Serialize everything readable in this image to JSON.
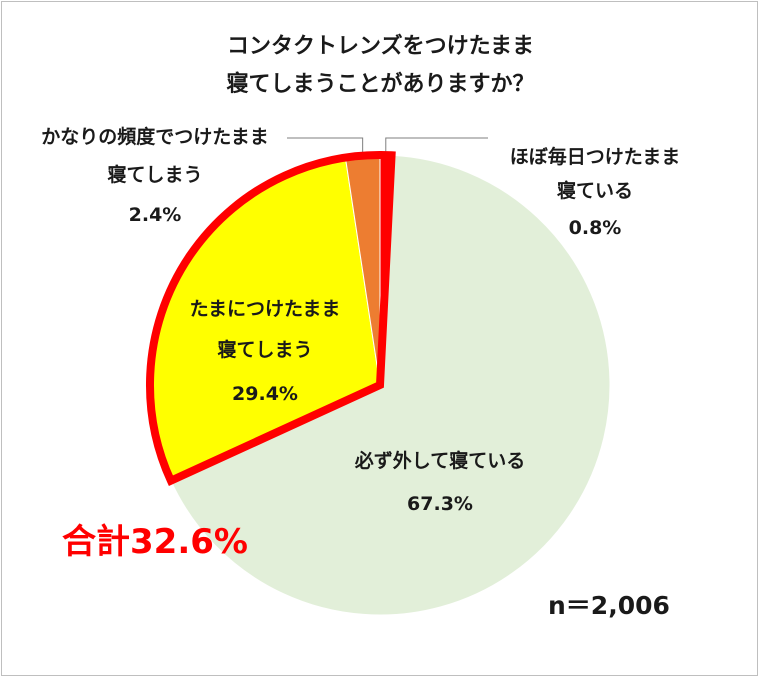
{
  "chart_data": {
    "type": "pie",
    "title_line1": "コンタクトレンズをつけたまま",
    "title_line2": "寝てしまうことがありますか？",
    "slices": [
      {
        "line1": "ほぼ毎日つけたまま",
        "line2": "寝ている",
        "value": 0.8,
        "value_label": "0.8%",
        "color": "#ff0000"
      },
      {
        "line1": "必ず外して寝ている",
        "line2": "",
        "value": 67.3,
        "value_label": "67.3%",
        "color": "#e2efd9"
      },
      {
        "line1": "たまにつけたまま",
        "line2": "寝てしまう",
        "value": 29.4,
        "value_label": "29.4%",
        "color": "#ffff00"
      },
      {
        "line1": "かなりの頻度でつけたまま",
        "line2": "寝てしまう",
        "value": 2.4,
        "value_label": "2.4%",
        "color": "#ed7d31"
      }
    ],
    "highlight_outline_color": "#ff0000",
    "total_label": "合計32.6%",
    "n_label": "n＝2,006"
  }
}
